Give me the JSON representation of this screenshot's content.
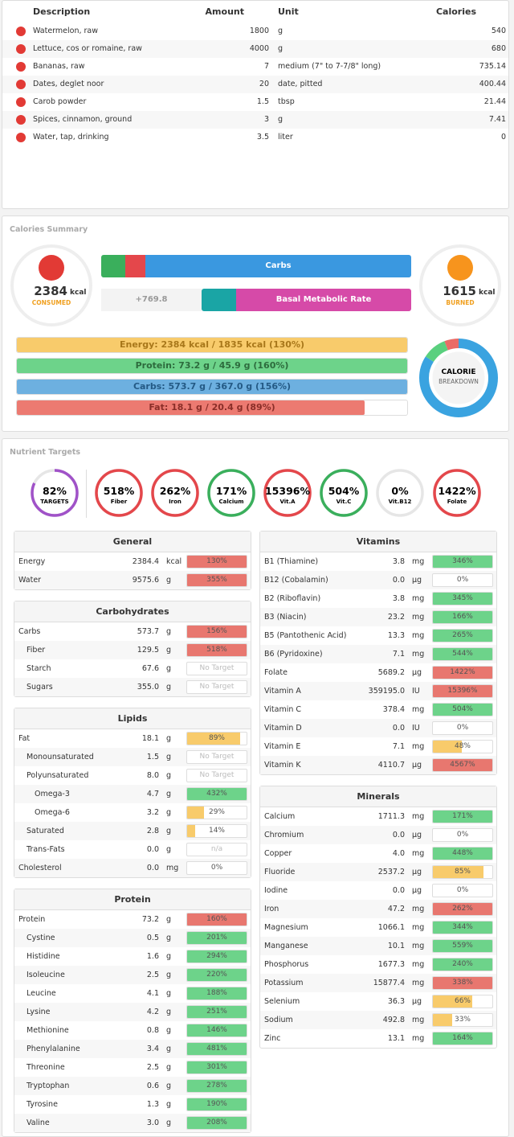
{
  "food_table": {
    "headers": [
      "Description",
      "Amount",
      "Unit",
      "Calories"
    ],
    "rows": [
      [
        "Watermelon, raw",
        "1800",
        "g",
        "540"
      ],
      [
        "Lettuce, cos or romaine, raw",
        "4000",
        "g",
        "680"
      ],
      [
        "Bananas, raw",
        "7",
        "medium (7\" to 7-7/8\" long)",
        "735.14"
      ],
      [
        "Dates, deglet noor",
        "20",
        "date, pitted",
        "400.44"
      ],
      [
        "Carob powder",
        "1.5",
        "tbsp",
        "21.44"
      ],
      [
        "Spices, cinnamon, ground",
        "3",
        "g",
        "7.41"
      ],
      [
        "Water, tap, drinking",
        "3.5",
        "liter",
        "0"
      ]
    ]
  },
  "calories_summary": {
    "title": "Calories Summary",
    "consumed": {
      "value": "2384",
      "unit": "kcal",
      "label": "CONSUMED"
    },
    "burned": {
      "value": "1615",
      "unit": "kcal",
      "label": "BURNED"
    },
    "intake_bar": {
      "label": "Carbs"
    },
    "burn_bar": {
      "difference": "+769.8",
      "label": "Basal Metabolic Rate"
    },
    "bars": [
      {
        "text": "Energy: 2384 kcal / 1835 kcal (130%)",
        "percent": 130,
        "color": "#f8cb6b",
        "text_color": "#a8771a"
      },
      {
        "text": "Protein: 73.2 g / 45.9 g (160%)",
        "percent": 160,
        "color": "#6dd38a",
        "text_color": "#2d6b3d"
      },
      {
        "text": "Carbs: 573.7 g / 367.0 g (156%)",
        "percent": 156,
        "color": "#6db0e0",
        "text_color": "#245a85"
      },
      {
        "text": "Fat: 18.1 g / 20.4 g (89%)",
        "percent": 89,
        "color": "#ec7a71",
        "text_color": "#8a2e28"
      }
    ],
    "breakdown": {
      "label1": "CALORIE",
      "label2": "BREAKDOWN",
      "segments": [
        {
          "value": 84,
          "color": "#3aa3e0"
        },
        {
          "value": 10,
          "color": "#5ad07e"
        },
        {
          "value": 6,
          "color": "#ea6b66"
        }
      ]
    }
  },
  "nutrient_targets": {
    "title": "Nutrient Targets",
    "circles": [
      {
        "percent": 82,
        "percent_label": "82%",
        "label": "TARGETS",
        "color": "#a052c8"
      },
      {
        "percent": 518,
        "percent_label": "518%",
        "label": "Fiber",
        "color": "#e4474b"
      },
      {
        "percent": 262,
        "percent_label": "262%",
        "label": "Iron",
        "color": "#e4474b"
      },
      {
        "percent": 171,
        "percent_label": "171%",
        "label": "Calcium",
        "color": "#3aaf5c"
      },
      {
        "percent": 15396,
        "percent_label": "15396%",
        "label": "Vit.A",
        "color": "#e4474b"
      },
      {
        "percent": 504,
        "percent_label": "504%",
        "label": "Vit.C",
        "color": "#3aaf5c"
      },
      {
        "percent": 0,
        "percent_label": "0%",
        "label": "Vit.B12",
        "color": "#dddddd"
      },
      {
        "percent": 1422,
        "percent_label": "1422%",
        "label": "Folate",
        "color": "#e4474b"
      }
    ],
    "panels": [
      {
        "title": "General",
        "column": "left",
        "rows": [
          {
            "name": "Energy",
            "level": 0,
            "amount": "2384.4",
            "unit": "kcal",
            "percent": 130,
            "percent_label": "130%",
            "color": "#e8776f"
          },
          {
            "name": "Water",
            "level": 0,
            "amount": "9575.6",
            "unit": "g",
            "percent": 355,
            "percent_label": "355%",
            "color": "#e8776f"
          }
        ]
      },
      {
        "title": "Carbohydrates",
        "column": "left",
        "rows": [
          {
            "name": "Carbs",
            "level": 0,
            "amount": "573.7",
            "unit": "g",
            "percent": 156,
            "percent_label": "156%",
            "color": "#e8776f"
          },
          {
            "name": "Fiber",
            "level": 1,
            "amount": "129.5",
            "unit": "g",
            "percent": 518,
            "percent_label": "518%",
            "color": "#e8776f"
          },
          {
            "name": "Starch",
            "level": 1,
            "amount": "67.6",
            "unit": "g",
            "percent_label": "No Target"
          },
          {
            "name": "Sugars",
            "level": 1,
            "amount": "355.0",
            "unit": "g",
            "percent_label": "No Target"
          }
        ]
      },
      {
        "title": "Lipids",
        "column": "left",
        "rows": [
          {
            "name": "Fat",
            "level": 0,
            "amount": "18.1",
            "unit": "g",
            "percent": 89,
            "percent_label": "89%",
            "color": "#f8cb6b"
          },
          {
            "name": "Monounsaturated",
            "level": 1,
            "amount": "1.5",
            "unit": "g",
            "percent_label": "No Target"
          },
          {
            "name": "Polyunsaturated",
            "level": 1,
            "amount": "8.0",
            "unit": "g",
            "percent_label": "No Target"
          },
          {
            "name": "Omega-3",
            "level": 2,
            "amount": "4.7",
            "unit": "g",
            "percent": 432,
            "percent_label": "432%",
            "color": "#6dd38a"
          },
          {
            "name": "Omega-6",
            "level": 2,
            "amount": "3.2",
            "unit": "g",
            "percent": 29,
            "percent_label": "29%",
            "color": "#f8cb6b"
          },
          {
            "name": "Saturated",
            "level": 1,
            "amount": "2.8",
            "unit": "g",
            "percent": 14,
            "percent_label": "14%",
            "color": "#f8cb6b"
          },
          {
            "name": "Trans-Fats",
            "level": 1,
            "amount": "0.0",
            "unit": "g",
            "percent_label": "n/a"
          },
          {
            "name": "Cholesterol",
            "level": 0,
            "amount": "0.0",
            "unit": "mg",
            "percent": 0,
            "percent_label": "0%"
          }
        ]
      },
      {
        "title": "Protein",
        "column": "left",
        "rows": [
          {
            "name": "Protein",
            "level": 0,
            "amount": "73.2",
            "unit": "g",
            "percent": 160,
            "percent_label": "160%",
            "color": "#e8776f"
          },
          {
            "name": "Cystine",
            "level": 1,
            "amount": "0.5",
            "unit": "g",
            "percent": 201,
            "percent_label": "201%",
            "color": "#6dd38a"
          },
          {
            "name": "Histidine",
            "level": 1,
            "amount": "1.6",
            "unit": "g",
            "percent": 294,
            "percent_label": "294%",
            "color": "#6dd38a"
          },
          {
            "name": "Isoleucine",
            "level": 1,
            "amount": "2.5",
            "unit": "g",
            "percent": 220,
            "percent_label": "220%",
            "color": "#6dd38a"
          },
          {
            "name": "Leucine",
            "level": 1,
            "amount": "4.1",
            "unit": "g",
            "percent": 188,
            "percent_label": "188%",
            "color": "#6dd38a"
          },
          {
            "name": "Lysine",
            "level": 1,
            "amount": "4.2",
            "unit": "g",
            "percent": 251,
            "percent_label": "251%",
            "color": "#6dd38a"
          },
          {
            "name": "Methionine",
            "level": 1,
            "amount": "0.8",
            "unit": "g",
            "percent": 146,
            "percent_label": "146%",
            "color": "#6dd38a"
          },
          {
            "name": "Phenylalanine",
            "level": 1,
            "amount": "3.4",
            "unit": "g",
            "percent": 481,
            "percent_label": "481%",
            "color": "#6dd38a"
          },
          {
            "name": "Threonine",
            "level": 1,
            "amount": "2.5",
            "unit": "g",
            "percent": 301,
            "percent_label": "301%",
            "color": "#6dd38a"
          },
          {
            "name": "Tryptophan",
            "level": 1,
            "amount": "0.6",
            "unit": "g",
            "percent": 278,
            "percent_label": "278%",
            "color": "#6dd38a"
          },
          {
            "name": "Tyrosine",
            "level": 1,
            "amount": "1.3",
            "unit": "g",
            "percent": 190,
            "percent_label": "190%",
            "color": "#6dd38a"
          },
          {
            "name": "Valine",
            "level": 1,
            "amount": "3.0",
            "unit": "g",
            "percent": 208,
            "percent_label": "208%",
            "color": "#6dd38a"
          }
        ]
      },
      {
        "title": "Vitamins",
        "column": "right",
        "rows": [
          {
            "name": "B1 (Thiamine)",
            "level": 0,
            "amount": "3.8",
            "unit": "mg",
            "percent": 346,
            "percent_label": "346%",
            "color": "#6dd38a"
          },
          {
            "name": "B12 (Cobalamin)",
            "level": 0,
            "amount": "0.0",
            "unit": "µg",
            "percent": 0,
            "percent_label": "0%"
          },
          {
            "name": "B2 (Riboflavin)",
            "level": 0,
            "amount": "3.8",
            "unit": "mg",
            "percent": 345,
            "percent_label": "345%",
            "color": "#6dd38a"
          },
          {
            "name": "B3 (Niacin)",
            "level": 0,
            "amount": "23.2",
            "unit": "mg",
            "percent": 166,
            "percent_label": "166%",
            "color": "#6dd38a"
          },
          {
            "name": "B5 (Pantothenic Acid)",
            "level": 0,
            "amount": "13.3",
            "unit": "mg",
            "percent": 265,
            "percent_label": "265%",
            "color": "#6dd38a"
          },
          {
            "name": "B6 (Pyridoxine)",
            "level": 0,
            "amount": "7.1",
            "unit": "mg",
            "percent": 544,
            "percent_label": "544%",
            "color": "#6dd38a"
          },
          {
            "name": "Folate",
            "level": 0,
            "amount": "5689.2",
            "unit": "µg",
            "percent": 1422,
            "percent_label": "1422%",
            "color": "#e8776f"
          },
          {
            "name": "Vitamin A",
            "level": 0,
            "amount": "359195.0",
            "unit": "IU",
            "percent": 15396,
            "percent_label": "15396%",
            "color": "#e8776f"
          },
          {
            "name": "Vitamin C",
            "level": 0,
            "amount": "378.4",
            "unit": "mg",
            "percent": 504,
            "percent_label": "504%",
            "color": "#6dd38a"
          },
          {
            "name": "Vitamin D",
            "level": 0,
            "amount": "0.0",
            "unit": "IU",
            "percent": 0,
            "percent_label": "0%"
          },
          {
            "name": "Vitamin E",
            "level": 0,
            "amount": "7.1",
            "unit": "mg",
            "percent": 48,
            "percent_label": "48%",
            "color": "#f8cb6b"
          },
          {
            "name": "Vitamin K",
            "level": 0,
            "amount": "4110.7",
            "unit": "µg",
            "percent": 4567,
            "percent_label": "4567%",
            "color": "#e8776f"
          }
        ]
      },
      {
        "title": "Minerals",
        "column": "right",
        "rows": [
          {
            "name": "Calcium",
            "level": 0,
            "amount": "1711.3",
            "unit": "mg",
            "percent": 171,
            "percent_label": "171%",
            "color": "#6dd38a"
          },
          {
            "name": "Chromium",
            "level": 0,
            "amount": "0.0",
            "unit": "µg",
            "percent": 0,
            "percent_label": "0%"
          },
          {
            "name": "Copper",
            "level": 0,
            "amount": "4.0",
            "unit": "mg",
            "percent": 448,
            "percent_label": "448%",
            "color": "#6dd38a"
          },
          {
            "name": "Fluoride",
            "level": 0,
            "amount": "2537.2",
            "unit": "µg",
            "percent": 85,
            "percent_label": "85%",
            "color": "#f8cb6b"
          },
          {
            "name": "Iodine",
            "level": 0,
            "amount": "0.0",
            "unit": "µg",
            "percent": 0,
            "percent_label": "0%"
          },
          {
            "name": "Iron",
            "level": 0,
            "amount": "47.2",
            "unit": "mg",
            "percent": 262,
            "percent_label": "262%",
            "color": "#e8776f"
          },
          {
            "name": "Magnesium",
            "level": 0,
            "amount": "1066.1",
            "unit": "mg",
            "percent": 344,
            "percent_label": "344%",
            "color": "#6dd38a"
          },
          {
            "name": "Manganese",
            "level": 0,
            "amount": "10.1",
            "unit": "mg",
            "percent": 559,
            "percent_label": "559%",
            "color": "#6dd38a"
          },
          {
            "name": "Phosphorus",
            "level": 0,
            "amount": "1677.3",
            "unit": "mg",
            "percent": 240,
            "percent_label": "240%",
            "color": "#6dd38a"
          },
          {
            "name": "Potassium",
            "level": 0,
            "amount": "15877.4",
            "unit": "mg",
            "percent": 338,
            "percent_label": "338%",
            "color": "#e8776f"
          },
          {
            "name": "Selenium",
            "level": 0,
            "amount": "36.3",
            "unit": "µg",
            "percent": 66,
            "percent_label": "66%",
            "color": "#f8cb6b"
          },
          {
            "name": "Sodium",
            "level": 0,
            "amount": "492.8",
            "unit": "mg",
            "percent": 33,
            "percent_label": "33%",
            "color": "#f8cb6b"
          },
          {
            "name": "Zinc",
            "level": 0,
            "amount": "13.1",
            "unit": "mg",
            "percent": 164,
            "percent_label": "164%",
            "color": "#6dd38a"
          }
        ]
      }
    ]
  }
}
